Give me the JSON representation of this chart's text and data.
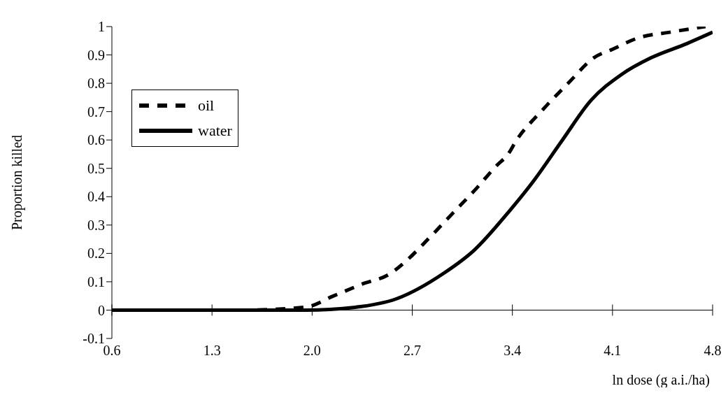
{
  "chart_data": {
    "type": "line",
    "xlabel": "ln dose (g a.i./ha)",
    "ylabel": "Proportion killed",
    "xlim": [
      0.6,
      4.8
    ],
    "xticks": [
      0.6,
      1.3,
      {
        "value": 2.0,
        "label": "2.0"
      },
      2.7,
      3.4,
      4.1,
      4.8
    ],
    "ylim": [
      -0.1,
      1
    ],
    "yticks": [
      -0.1,
      0,
      0.1,
      0.2,
      0.3,
      0.4,
      0.5,
      0.6,
      0.7,
      0.8,
      0.9,
      1
    ],
    "grid": false,
    "legend": "top left",
    "marker": "none",
    "series": [
      {
        "name": "oil",
        "color": "#000000",
        "line_style": "dashed",
        "x": [
          0.6,
          1.0,
          1.5,
          1.95,
          2.15,
          2.34,
          2.55,
          2.65,
          2.81,
          2.98,
          3.15,
          3.29,
          3.37,
          3.43,
          3.6,
          3.79,
          3.97,
          4.1,
          4.28,
          4.5,
          4.75
        ],
        "values": [
          0,
          0,
          0,
          0.01,
          0.05,
          0.09,
          0.13,
          0.17,
          0.25,
          0.34,
          0.43,
          0.51,
          0.55,
          0.6,
          0.7,
          0.8,
          0.89,
          0.92,
          0.96,
          0.98,
          1.0
        ]
      },
      {
        "name": "water",
        "color": "#000000",
        "line_style": "solid",
        "x": [
          0.6,
          1.0,
          1.5,
          1.95,
          2.3,
          2.59,
          2.92,
          3.13,
          3.38,
          3.54,
          3.75,
          3.95,
          4.16,
          4.37,
          4.62,
          4.8
        ],
        "values": [
          0,
          0,
          0,
          0,
          0.01,
          0.04,
          0.13,
          0.21,
          0.35,
          0.45,
          0.6,
          0.74,
          0.83,
          0.89,
          0.94,
          0.98
        ]
      }
    ]
  }
}
